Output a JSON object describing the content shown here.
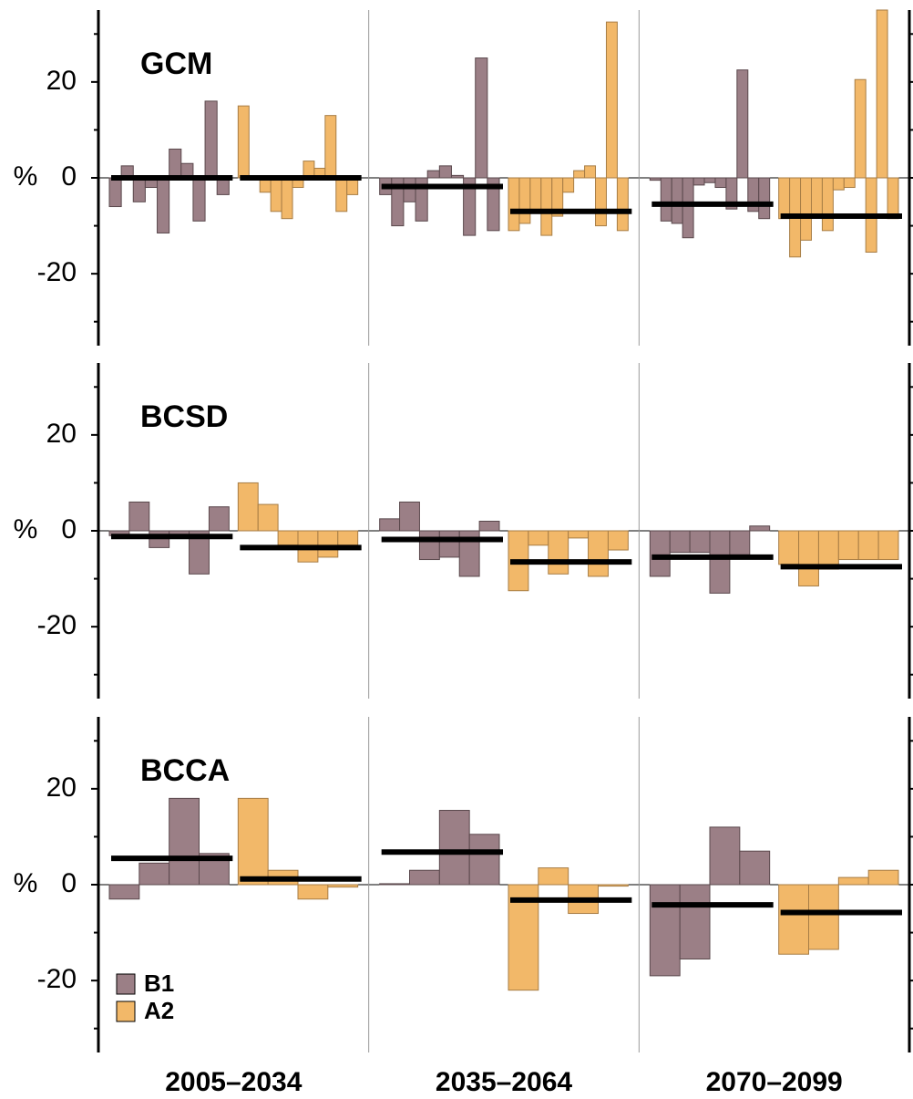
{
  "chart_data": [
    {
      "type": "bar",
      "title": "GCM",
      "ylabel": "%",
      "ylim": [
        -35,
        35
      ],
      "yticks": [
        -20,
        0,
        20
      ],
      "minor_yticks": [
        -30,
        -10,
        10,
        30
      ],
      "series": [
        {
          "color": "#9b7f86",
          "values": [
            [
              -6,
              2.5,
              -5,
              -2,
              -11.5,
              6,
              3,
              -9,
              16,
              -3.5
            ],
            [
              -3.5,
              -10,
              -5,
              -9,
              1.5,
              2.5,
              0.5,
              -12,
              25,
              -11
            ],
            [
              -0.5,
              -9,
              -9.5,
              -12.5,
              -1.5,
              -1,
              -2,
              -6.5,
              22.5,
              -7,
              -8.5
            ]
          ],
          "means": [
            0,
            -1.8,
            -5.5
          ]
        },
        {
          "color": "#f2b869",
          "values": [
            [
              15,
              0,
              -3,
              -7,
              -8.5,
              -2,
              3.5,
              2,
              13,
              -7,
              -3.5
            ],
            [
              -11,
              -9.5,
              -7,
              -12,
              -8,
              -3,
              1.5,
              2.5,
              -10,
              32.5,
              -11
            ],
            [
              -8.5,
              -16.5,
              -13,
              -8,
              -11,
              -2.5,
              -2,
              20.5,
              -15.5,
              35,
              -8.5
            ]
          ],
          "means": [
            0,
            -7,
            -8
          ]
        }
      ]
    },
    {
      "type": "bar",
      "title": "BCSD",
      "ylabel": "%",
      "ylim": [
        -35,
        35
      ],
      "yticks": [
        -20,
        0,
        20
      ],
      "minor_yticks": [
        -30,
        -10,
        10,
        30
      ],
      "series": [
        {
          "color": "#9b7f86",
          "values": [
            [
              -1,
              6,
              -3.5,
              -1,
              -9,
              5
            ],
            [
              2.5,
              6,
              -6,
              -5.5,
              -9.5,
              2
            ],
            [
              -9.5,
              -4.5,
              -4.5,
              -13,
              -5,
              1
            ]
          ],
          "means": [
            -1.2,
            -1.8,
            -5.5
          ]
        },
        {
          "color": "#f2b869",
          "values": [
            [
              10,
              5.5,
              -3,
              -6.5,
              -5.5,
              -3
            ],
            [
              -12.5,
              -3,
              -9,
              -1.5,
              -9.5,
              -4
            ],
            [
              -7,
              -11.5,
              -8,
              -6,
              -6,
              -6
            ]
          ],
          "means": [
            -3.5,
            -6.5,
            -7.5
          ]
        }
      ]
    },
    {
      "type": "bar",
      "title": "BCCA",
      "ylabel": "%",
      "ylim": [
        -35,
        35
      ],
      "yticks": [
        -20,
        0,
        20
      ],
      "minor_yticks": [
        -30,
        -10,
        10,
        30
      ],
      "categories": [
        "2005–2034",
        "2035–2064",
        "2070–2099"
      ],
      "series": [
        {
          "name": "B1",
          "color": "#9b7f86",
          "values": [
            [
              -3,
              4.5,
              18,
              6.5
            ],
            [
              0.2,
              3,
              15.5,
              10.5
            ],
            [
              -19,
              -15.5,
              12,
              7
            ]
          ],
          "means": [
            5.5,
            6.8,
            -4.2
          ]
        },
        {
          "name": "A2",
          "color": "#f2b869",
          "values": [
            [
              18,
              3,
              -3,
              -0.5
            ],
            [
              -22,
              3.5,
              -6,
              -0.3
            ],
            [
              -14.5,
              -13.5,
              1.5,
              3
            ]
          ],
          "means": [
            1.2,
            -3.2,
            -5.8
          ]
        }
      ]
    }
  ]
}
